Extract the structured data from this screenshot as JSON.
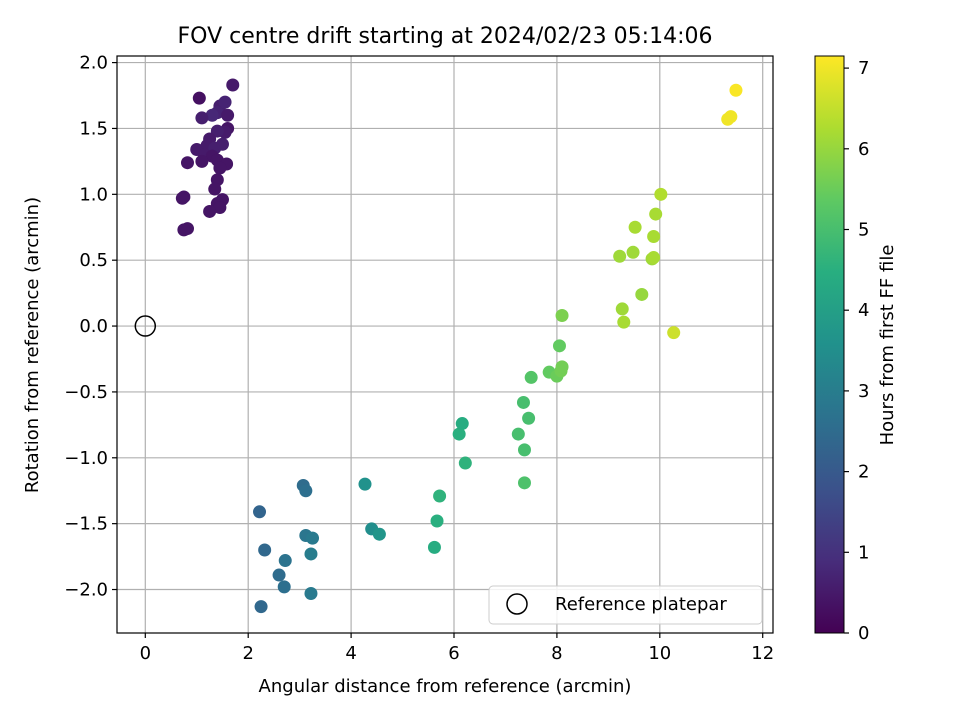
{
  "chart_data": {
    "type": "scatter",
    "title": "FOV centre drift starting at 2024/02/23 05:14:06",
    "xlabel": "Angular distance from reference (arcmin)",
    "ylabel": "Rotation from reference (arcmin)",
    "xlim": [
      -0.55,
      12.2
    ],
    "ylim": [
      -2.33,
      2.05
    ],
    "xticks": [
      0,
      2,
      4,
      6,
      8,
      10,
      12
    ],
    "xtick_labels": [
      "0",
      "2",
      "4",
      "6",
      "8",
      "10",
      "12"
    ],
    "yticks": [
      -2.0,
      -1.5,
      -1.0,
      -0.5,
      0.0,
      0.5,
      1.0,
      1.5,
      2.0
    ],
    "ytick_labels": [
      "−2.0",
      "−1.5",
      "−1.0",
      "−0.5",
      "0.0",
      "0.5",
      "1.0",
      "1.5",
      "2.0"
    ],
    "grid": true,
    "colormap": "viridis",
    "colorbar": {
      "label": "Hours from first FF file",
      "range": [
        0,
        7.15
      ],
      "ticks": [
        0,
        1,
        2,
        3,
        4,
        5,
        6,
        7
      ],
      "tick_labels": [
        "0",
        "1",
        "2",
        "3",
        "4",
        "5",
        "6",
        "7"
      ]
    },
    "legend": {
      "label": "Reference platepar",
      "placement": "lower right"
    },
    "reference_point": {
      "x": 0,
      "y": 0
    },
    "points": [
      {
        "x": 1.05,
        "y": 1.73,
        "c": 0.3
      },
      {
        "x": 1.7,
        "y": 1.83,
        "c": 0.5
      },
      {
        "x": 1.45,
        "y": 1.67,
        "c": 0.6
      },
      {
        "x": 1.55,
        "y": 1.7,
        "c": 0.7
      },
      {
        "x": 1.4,
        "y": 1.62,
        "c": 0.7
      },
      {
        "x": 1.3,
        "y": 1.6,
        "c": 0.8
      },
      {
        "x": 1.1,
        "y": 1.58,
        "c": 0.6
      },
      {
        "x": 1.6,
        "y": 1.6,
        "c": 0.5
      },
      {
        "x": 1.6,
        "y": 1.5,
        "c": 0.4
      },
      {
        "x": 1.55,
        "y": 1.47,
        "c": 0.5
      },
      {
        "x": 1.4,
        "y": 1.48,
        "c": 0.6
      },
      {
        "x": 1.25,
        "y": 1.42,
        "c": 0.5
      },
      {
        "x": 1.2,
        "y": 1.37,
        "c": 0.5
      },
      {
        "x": 1.35,
        "y": 1.35,
        "c": 0.6
      },
      {
        "x": 1.5,
        "y": 1.38,
        "c": 0.6
      },
      {
        "x": 1.0,
        "y": 1.34,
        "c": 0.5
      },
      {
        "x": 1.15,
        "y": 1.3,
        "c": 0.5
      },
      {
        "x": 1.3,
        "y": 1.29,
        "c": 0.4
      },
      {
        "x": 1.4,
        "y": 1.26,
        "c": 0.4
      },
      {
        "x": 1.1,
        "y": 1.25,
        "c": 0.4
      },
      {
        "x": 0.82,
        "y": 1.24,
        "c": 0.4
      },
      {
        "x": 1.58,
        "y": 1.23,
        "c": 0.4
      },
      {
        "x": 1.45,
        "y": 1.2,
        "c": 0.4
      },
      {
        "x": 1.4,
        "y": 1.11,
        "c": 0.4
      },
      {
        "x": 1.35,
        "y": 1.04,
        "c": 0.4
      },
      {
        "x": 0.75,
        "y": 0.98,
        "c": 0.4
      },
      {
        "x": 0.72,
        "y": 0.97,
        "c": 0.4
      },
      {
        "x": 1.5,
        "y": 0.96,
        "c": 0.4
      },
      {
        "x": 1.4,
        "y": 0.93,
        "c": 0.4
      },
      {
        "x": 1.45,
        "y": 0.9,
        "c": 0.4
      },
      {
        "x": 1.25,
        "y": 0.87,
        "c": 0.4
      },
      {
        "x": 0.82,
        "y": 0.74,
        "c": 0.4
      },
      {
        "x": 0.75,
        "y": 0.73,
        "c": 0.4
      },
      {
        "x": 2.22,
        "y": -1.41,
        "c": 2.3
      },
      {
        "x": 2.32,
        "y": -1.7,
        "c": 2.4
      },
      {
        "x": 2.6,
        "y": -1.89,
        "c": 2.5
      },
      {
        "x": 2.7,
        "y": -1.98,
        "c": 2.6
      },
      {
        "x": 2.72,
        "y": -1.78,
        "c": 2.7
      },
      {
        "x": 2.25,
        "y": -2.13,
        "c": 2.4
      },
      {
        "x": 3.07,
        "y": -1.21,
        "c": 2.5
      },
      {
        "x": 3.12,
        "y": -1.25,
        "c": 2.6
      },
      {
        "x": 3.12,
        "y": -1.59,
        "c": 2.8
      },
      {
        "x": 3.25,
        "y": -1.61,
        "c": 2.9
      },
      {
        "x": 3.22,
        "y": -1.73,
        "c": 3.0
      },
      {
        "x": 3.22,
        "y": -2.03,
        "c": 2.9
      },
      {
        "x": 4.27,
        "y": -1.2,
        "c": 3.6
      },
      {
        "x": 4.4,
        "y": -1.54,
        "c": 3.5
      },
      {
        "x": 4.55,
        "y": -1.58,
        "c": 3.7
      },
      {
        "x": 5.62,
        "y": -1.68,
        "c": 4.4
      },
      {
        "x": 5.67,
        "y": -1.48,
        "c": 4.5
      },
      {
        "x": 5.72,
        "y": -1.29,
        "c": 4.6
      },
      {
        "x": 6.1,
        "y": -0.82,
        "c": 4.5
      },
      {
        "x": 6.16,
        "y": -0.74,
        "c": 4.4
      },
      {
        "x": 6.22,
        "y": -1.04,
        "c": 4.6
      },
      {
        "x": 7.25,
        "y": -0.82,
        "c": 5.0
      },
      {
        "x": 7.35,
        "y": -0.58,
        "c": 5.0
      },
      {
        "x": 7.37,
        "y": -0.94,
        "c": 5.0
      },
      {
        "x": 7.37,
        "y": -1.19,
        "c": 5.1
      },
      {
        "x": 7.45,
        "y": -0.7,
        "c": 5.0
      },
      {
        "x": 7.5,
        "y": -0.39,
        "c": 5.2
      },
      {
        "x": 7.85,
        "y": -0.35,
        "c": 5.4
      },
      {
        "x": 8.0,
        "y": -0.38,
        "c": 5.5
      },
      {
        "x": 8.05,
        "y": -0.15,
        "c": 5.4
      },
      {
        "x": 8.08,
        "y": -0.34,
        "c": 5.6
      },
      {
        "x": 8.1,
        "y": -0.31,
        "c": 5.6
      },
      {
        "x": 8.1,
        "y": 0.08,
        "c": 5.7
      },
      {
        "x": 9.22,
        "y": 0.53,
        "c": 6.1
      },
      {
        "x": 9.27,
        "y": 0.13,
        "c": 6.1
      },
      {
        "x": 9.3,
        "y": 0.03,
        "c": 6.2
      },
      {
        "x": 9.48,
        "y": 0.56,
        "c": 6.1
      },
      {
        "x": 9.52,
        "y": 0.75,
        "c": 6.2
      },
      {
        "x": 9.65,
        "y": 0.24,
        "c": 6.0
      },
      {
        "x": 9.85,
        "y": 0.51,
        "c": 6.1
      },
      {
        "x": 9.88,
        "y": 0.52,
        "c": 6.2
      },
      {
        "x": 9.88,
        "y": 0.68,
        "c": 6.2
      },
      {
        "x": 9.92,
        "y": 0.85,
        "c": 6.2
      },
      {
        "x": 10.02,
        "y": 1.0,
        "c": 6.3
      },
      {
        "x": 10.27,
        "y": -0.05,
        "c": 6.6
      },
      {
        "x": 11.32,
        "y": 1.57,
        "c": 7.0
      },
      {
        "x": 11.38,
        "y": 1.59,
        "c": 7.0
      },
      {
        "x": 11.48,
        "y": 1.79,
        "c": 7.1
      }
    ]
  }
}
